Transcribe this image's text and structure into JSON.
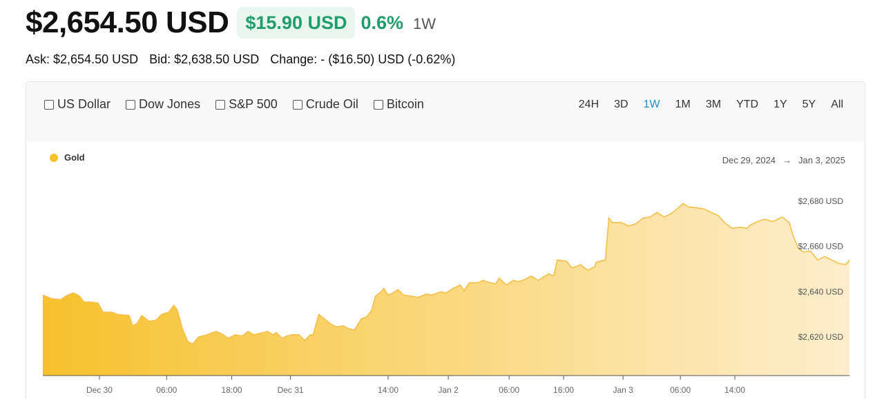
{
  "header": {
    "price": "$2,654.50 USD",
    "change_amount": "$15.90 USD",
    "change_percent": "0.6%",
    "period": "1W"
  },
  "quote": {
    "ask": "Ask: $2,654.50 USD",
    "bid": "Bid: $2,638.50 USD",
    "change": "Change: - ($16.50) USD (-0.62%)"
  },
  "compare": [
    {
      "label": "US Dollar",
      "checked": false
    },
    {
      "label": "Dow Jones",
      "checked": false
    },
    {
      "label": "S&P 500",
      "checked": false
    },
    {
      "label": "Crude Oil",
      "checked": false
    },
    {
      "label": "Bitcoin",
      "checked": false
    }
  ],
  "ranges": [
    "24H",
    "3D",
    "1W",
    "1M",
    "3M",
    "YTD",
    "1Y",
    "5Y",
    "All"
  ],
  "active_range": "1W",
  "date_range": {
    "start": "Dec 29, 2024",
    "arrow": "→",
    "end": "Jan 3, 2025"
  },
  "colors": {
    "accent_green": "#1f9d6b",
    "active_blue": "#1f8fbf",
    "gold": "#f6c12c"
  },
  "chart_data": {
    "type": "area",
    "legend": [
      {
        "name": "Gold",
        "color": "#f6c12c"
      }
    ],
    "legend_position": "top-left",
    "grid": false,
    "ylim": [
      2603,
      2690
    ],
    "yticks": [
      {
        "value": 2620,
        "label": "$2,620 USD"
      },
      {
        "value": 2640,
        "label": "$2,640 USD"
      },
      {
        "value": 2660,
        "label": "$2,660 USD"
      },
      {
        "value": 2680,
        "label": "$2,680 USD"
      }
    ],
    "xticks": [
      {
        "x": 0.08,
        "label": "Dec 30"
      },
      {
        "x": 0.175,
        "label": "06:00"
      },
      {
        "x": 0.267,
        "label": "18:00"
      },
      {
        "x": 0.35,
        "label": "Dec 31"
      },
      {
        "x": 0.488,
        "label": "14:00"
      },
      {
        "x": 0.573,
        "label": "Jan 2"
      },
      {
        "x": 0.659,
        "label": "06:00"
      },
      {
        "x": 0.736,
        "label": "16:00"
      },
      {
        "x": 0.82,
        "label": "Jan 3"
      },
      {
        "x": 0.901,
        "label": "06:00"
      },
      {
        "x": 0.978,
        "label": "14:00"
      }
    ],
    "series": [
      {
        "name": "Gold",
        "points": [
          [
            0.0,
            2638.5
          ],
          [
            0.012,
            2637.0
          ],
          [
            0.025,
            2636.5
          ],
          [
            0.032,
            2638.0
          ],
          [
            0.043,
            2639.5
          ],
          [
            0.052,
            2638.0
          ],
          [
            0.058,
            2635.5
          ],
          [
            0.068,
            2635.5
          ],
          [
            0.078,
            2635.0
          ],
          [
            0.085,
            2631.0
          ],
          [
            0.098,
            2631.0
          ],
          [
            0.105,
            2630.0
          ],
          [
            0.122,
            2629.5
          ],
          [
            0.127,
            2625.0
          ],
          [
            0.133,
            2626.0
          ],
          [
            0.14,
            2629.5
          ],
          [
            0.15,
            2627.0
          ],
          [
            0.16,
            2627.5
          ],
          [
            0.168,
            2630.0
          ],
          [
            0.178,
            2631.0
          ],
          [
            0.185,
            2634.0
          ],
          [
            0.19,
            2632.0
          ],
          [
            0.198,
            2623.0
          ],
          [
            0.205,
            2618.0
          ],
          [
            0.212,
            2617.0
          ],
          [
            0.22,
            2620.0
          ],
          [
            0.232,
            2621.0
          ],
          [
            0.245,
            2622.5
          ],
          [
            0.255,
            2621.0
          ],
          [
            0.262,
            2619.5
          ],
          [
            0.272,
            2621.0
          ],
          [
            0.282,
            2620.5
          ],
          [
            0.29,
            2622.5
          ],
          [
            0.298,
            2621.0
          ],
          [
            0.312,
            2622.0
          ],
          [
            0.318,
            2622.5
          ],
          [
            0.325,
            2621.0
          ],
          [
            0.33,
            2622.0
          ],
          [
            0.338,
            2619.5
          ],
          [
            0.345,
            2620.5
          ],
          [
            0.352,
            2621.0
          ],
          [
            0.362,
            2621.0
          ],
          [
            0.37,
            2618.5
          ],
          [
            0.378,
            2621.0
          ],
          [
            0.382,
            2621.0
          ],
          [
            0.39,
            2630.0
          ],
          [
            0.398,
            2628.0
          ],
          [
            0.408,
            2625.5
          ],
          [
            0.415,
            2624.5
          ],
          [
            0.425,
            2625.0
          ],
          [
            0.43,
            2624.0
          ],
          [
            0.44,
            2623.0
          ],
          [
            0.45,
            2628.0
          ],
          [
            0.458,
            2629.0
          ],
          [
            0.465,
            2632.0
          ],
          [
            0.47,
            2638.0
          ],
          [
            0.478,
            2640.0
          ],
          [
            0.482,
            2641.5
          ],
          [
            0.488,
            2638.5
          ],
          [
            0.495,
            2639.5
          ],
          [
            0.502,
            2641.0
          ],
          [
            0.51,
            2638.5
          ],
          [
            0.522,
            2638.0
          ],
          [
            0.53,
            2637.5
          ],
          [
            0.542,
            2639.0
          ],
          [
            0.55,
            2638.5
          ],
          [
            0.562,
            2640.0
          ],
          [
            0.57,
            2639.5
          ],
          [
            0.58,
            2641.5
          ],
          [
            0.59,
            2643.0
          ],
          [
            0.595,
            2640.5
          ],
          [
            0.603,
            2644.0
          ],
          [
            0.615,
            2644.0
          ],
          [
            0.622,
            2645.0
          ],
          [
            0.632,
            2644.0
          ],
          [
            0.64,
            2643.5
          ],
          [
            0.645,
            2646.0
          ],
          [
            0.655,
            2643.0
          ],
          [
            0.665,
            2645.0
          ],
          [
            0.672,
            2644.5
          ],
          [
            0.682,
            2645.5
          ],
          [
            0.69,
            2647.0
          ],
          [
            0.7,
            2645.0
          ],
          [
            0.715,
            2648.0
          ],
          [
            0.722,
            2647.0
          ],
          [
            0.727,
            2654.0
          ],
          [
            0.74,
            2653.5
          ],
          [
            0.748,
            2650.5
          ],
          [
            0.76,
            2652.0
          ],
          [
            0.77,
            2649.5
          ],
          [
            0.78,
            2651.0
          ],
          [
            0.782,
            2653.0
          ],
          [
            0.795,
            2654.0
          ],
          [
            0.8,
            2672.5
          ],
          [
            0.805,
            2670.5
          ],
          [
            0.818,
            2670.5
          ],
          [
            0.828,
            2669.0
          ],
          [
            0.838,
            2670.0
          ],
          [
            0.848,
            2672.5
          ],
          [
            0.858,
            2673.0
          ],
          [
            0.868,
            2675.0
          ],
          [
            0.878,
            2673.0
          ],
          [
            0.888,
            2674.5
          ],
          [
            0.898,
            2677.0
          ],
          [
            0.905,
            2679.0
          ],
          [
            0.912,
            2677.5
          ],
          [
            0.925,
            2677.0
          ],
          [
            0.935,
            2676.5
          ],
          [
            0.945,
            2675.0
          ],
          [
            0.955,
            2673.5
          ],
          [
            0.965,
            2670.0
          ],
          [
            0.975,
            2668.0
          ],
          [
            0.985,
            2668.5
          ],
          [
            0.995,
            2668.0
          ],
          [
            1.0,
            2669.5
          ]
        ]
      },
      {
        "name": "Gold",
        "points": [
          [
            1.0,
            2669.5
          ],
          [
            1.01,
            2671.0
          ],
          [
            1.02,
            2672.0
          ],
          [
            1.032,
            2671.0
          ],
          [
            1.045,
            2673.0
          ],
          [
            1.055,
            2670.5
          ],
          [
            1.06,
            2665.0
          ],
          [
            1.068,
            2659.0
          ],
          [
            1.075,
            2657.5
          ],
          [
            1.085,
            2658.0
          ],
          [
            1.095,
            2654.0
          ],
          [
            1.105,
            2655.5
          ],
          [
            1.115,
            2654.0
          ],
          [
            1.125,
            2652.5
          ],
          [
            1.135,
            2652.0
          ],
          [
            1.14,
            2654.0
          ]
        ]
      }
    ]
  }
}
